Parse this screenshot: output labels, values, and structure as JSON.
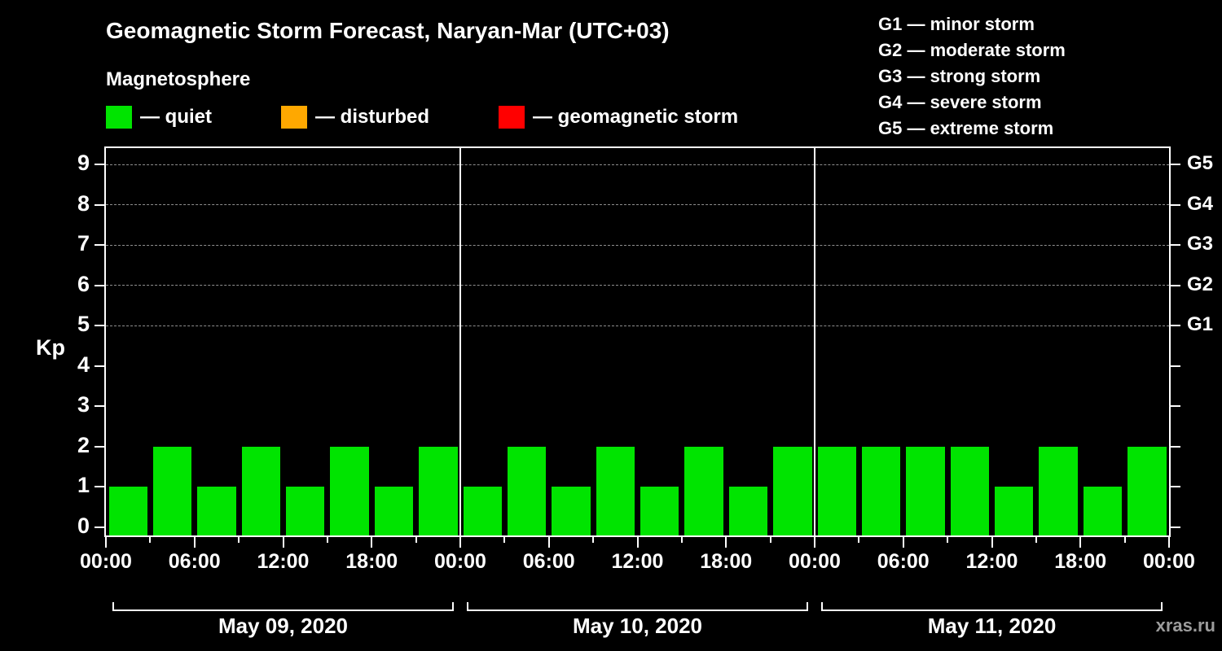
{
  "header": {
    "title": "Geomagnetic Storm Forecast, Naryan-Mar (UTC+03)",
    "subtitle": "Magnetosphere"
  },
  "legend": {
    "items": [
      {
        "label": "— quiet",
        "color": "#00e400"
      },
      {
        "label": "— disturbed",
        "color": "#ffa800"
      },
      {
        "label": "— geomagnetic storm",
        "color": "#ff0000"
      }
    ]
  },
  "storm_scale": {
    "items": [
      {
        "label": "G1 — minor storm"
      },
      {
        "label": "G2 — moderate storm"
      },
      {
        "label": "G3 — strong storm"
      },
      {
        "label": "G4 — severe storm"
      },
      {
        "label": "G5 — extreme storm"
      }
    ]
  },
  "watermark": "xras.ru",
  "chart_data": {
    "type": "bar",
    "title": "Geomagnetic Storm Forecast, Naryan-Mar (UTC+03)",
    "ylabel": "Kp",
    "ylim": [
      0,
      9.5
    ],
    "grid": "dashed horizontal at G levels",
    "bar_color": "#00e400",
    "interval_hours": 3,
    "y_ticks": [
      0,
      1,
      2,
      3,
      4,
      5,
      6,
      7,
      8,
      9
    ],
    "grid_levels": [
      5,
      6,
      7,
      8,
      9
    ],
    "right_axis": [
      {
        "label": "G5",
        "kp": 9
      },
      {
        "label": "G4",
        "kp": 8
      },
      {
        "label": "G3",
        "kp": 7
      },
      {
        "label": "G2",
        "kp": 6
      },
      {
        "label": "G1",
        "kp": 5
      }
    ],
    "x_tick_labels": [
      "00:00",
      "06:00",
      "12:00",
      "18:00",
      "00:00",
      "06:00",
      "12:00",
      "18:00",
      "00:00",
      "06:00",
      "12:00",
      "18:00",
      "00:00"
    ],
    "days": [
      {
        "date": "May 09, 2020",
        "values": [
          1,
          2,
          1,
          2,
          1,
          2,
          1,
          2
        ]
      },
      {
        "date": "May 10, 2020",
        "values": [
          1,
          2,
          1,
          2,
          1,
          2,
          1,
          2
        ]
      },
      {
        "date": "May 11, 2020",
        "values": [
          2,
          2,
          2,
          2,
          1,
          2,
          1,
          2
        ]
      }
    ]
  }
}
